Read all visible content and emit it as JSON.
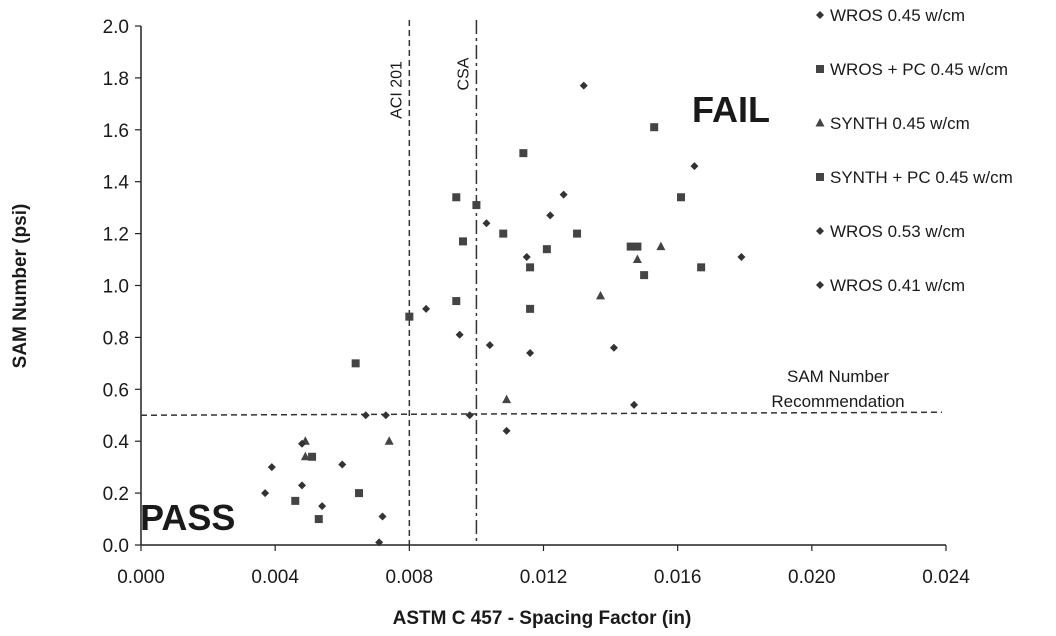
{
  "chart_data": {
    "type": "scatter",
    "xlabel": "ASTM C 457 - Spacing Factor (in)",
    "ylabel": "SAM Number (psi)",
    "xlim": [
      0.0,
      0.024
    ],
    "ylim": [
      0.0,
      2.0
    ],
    "x_ticks": [
      "0.000",
      "0.004",
      "0.008",
      "0.012",
      "0.016",
      "0.020",
      "0.024"
    ],
    "y_ticks": [
      "0.0",
      "0.2",
      "0.4",
      "0.6",
      "0.8",
      "1.0",
      "1.2",
      "1.4",
      "1.6",
      "1.8",
      "2.0"
    ],
    "grid": false,
    "legend_position": "right",
    "series": [
      {
        "name": "WROS 0.45 w/cm",
        "marker": "diamond",
        "points": [
          [
            0.0037,
            0.2
          ],
          [
            0.0039,
            0.3
          ],
          [
            0.0048,
            0.23
          ],
          [
            0.0054,
            0.15
          ],
          [
            0.006,
            0.31
          ],
          [
            0.0085,
            0.91
          ],
          [
            0.0098,
            0.5
          ],
          [
            0.0103,
            1.24
          ],
          [
            0.0115,
            1.11
          ],
          [
            0.0122,
            1.27
          ],
          [
            0.0126,
            1.35
          ],
          [
            0.0132,
            1.77
          ],
          [
            0.0165,
            1.46
          ]
        ]
      },
      {
        "name": "WROS + PC 0.45 w/cm",
        "marker": "square",
        "points": [
          [
            0.0046,
            0.17
          ],
          [
            0.0064,
            0.7
          ],
          [
            0.008,
            0.88
          ],
          [
            0.0096,
            1.17
          ],
          [
            0.01,
            1.31
          ],
          [
            0.0114,
            1.51
          ],
          [
            0.0121,
            1.14
          ],
          [
            0.013,
            1.2
          ],
          [
            0.0148,
            1.15
          ],
          [
            0.0153,
            1.61
          ],
          [
            0.0161,
            1.34
          ]
        ]
      },
      {
        "name": "SYNTH 0.45 w/cm",
        "marker": "triangle",
        "points": [
          [
            0.0049,
            0.4
          ],
          [
            0.0049,
            0.34
          ],
          [
            0.0074,
            0.4
          ],
          [
            0.0109,
            0.56
          ],
          [
            0.0137,
            0.96
          ],
          [
            0.0148,
            1.1
          ],
          [
            0.0155,
            1.15
          ]
        ]
      },
      {
        "name": "SYNTH + PC 0.45 w/cm",
        "marker": "square",
        "points": [
          [
            0.0051,
            0.34
          ],
          [
            0.0053,
            0.1
          ],
          [
            0.0065,
            0.2
          ],
          [
            0.0094,
            1.34
          ],
          [
            0.0094,
            0.94
          ],
          [
            0.0108,
            1.2
          ],
          [
            0.0116,
            1.07
          ],
          [
            0.0116,
            0.91
          ],
          [
            0.0146,
            1.15
          ],
          [
            0.015,
            1.04
          ],
          [
            0.0167,
            1.07
          ]
        ]
      },
      {
        "name": "WROS 0.53 w/cm",
        "marker": "diamond",
        "points": [
          [
            0.0048,
            0.39
          ],
          [
            0.0067,
            0.5
          ],
          [
            0.0072,
            0.11
          ],
          [
            0.0095,
            0.81
          ],
          [
            0.0104,
            0.77
          ],
          [
            0.0109,
            0.44
          ],
          [
            0.0116,
            0.74
          ],
          [
            0.0141,
            0.76
          ]
        ]
      },
      {
        "name": "WROS 0.41 w/cm",
        "marker": "diamond",
        "points": [
          [
            0.0071,
            0.01
          ],
          [
            0.0073,
            0.5
          ],
          [
            0.0147,
            0.54
          ],
          [
            0.0179,
            1.11
          ]
        ]
      }
    ],
    "reference_lines": [
      {
        "axis": "x",
        "value": 0.008,
        "label": "ACI 201"
      },
      {
        "axis": "x",
        "value": 0.01,
        "label": "CSA"
      },
      {
        "axis": "y",
        "value": 0.5,
        "label": "SAM Number Recommendation"
      }
    ],
    "annotations": [
      "PASS",
      "FAIL"
    ],
    "reference_label_lines": [
      "SAM Number",
      "Recommendation"
    ]
  }
}
